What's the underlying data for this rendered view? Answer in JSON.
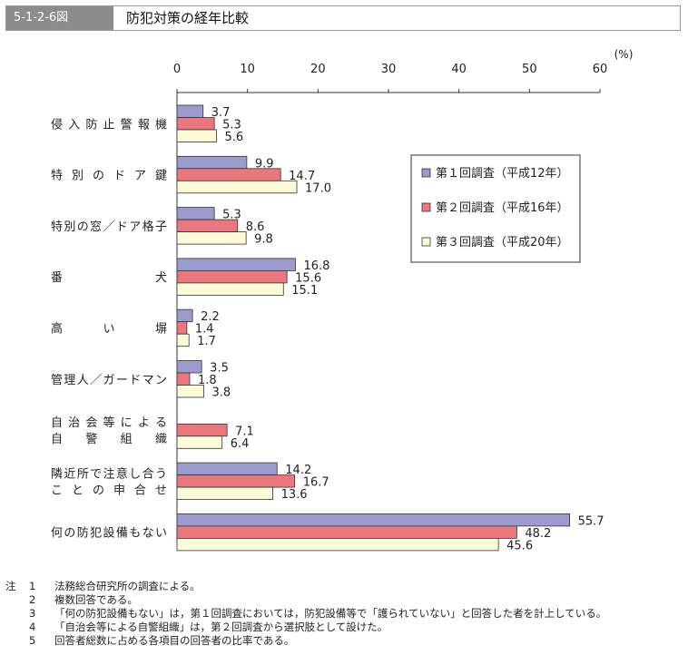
{
  "header": {
    "figure_number": "5-1-2-6図",
    "title": "防犯対策の経年比較"
  },
  "chart_data": {
    "type": "bar",
    "orientation": "horizontal",
    "title": "防犯対策の経年比較",
    "unit_label": "(%)",
    "xlim": [
      0,
      60
    ],
    "ticks": [
      "0",
      "10",
      "20",
      "30",
      "40",
      "50",
      "60"
    ],
    "categories": [
      [
        "侵入防止警報機"
      ],
      [
        "特別のドア鍵"
      ],
      [
        "特別の窓／ドア格子"
      ],
      [
        "番犬"
      ],
      [
        "高い塀"
      ],
      [
        "管理人／ガードマン"
      ],
      [
        "自治会等による",
        "自警組織"
      ],
      [
        "隣近所で注意し合う",
        "ことの申合せ"
      ],
      [
        "何の防犯設備もない"
      ]
    ],
    "category_display": [
      [
        "侵 入 防 止 警 報 機"
      ],
      [
        "特　別　の　ド　ア　鍵"
      ],
      [
        "特別の窓／ドア格子"
      ],
      [
        "番　　　　　　　犬"
      ],
      [
        "高　　　い　　　塀"
      ],
      [
        "管理人／ガードマン"
      ],
      [
        "自 治 会 等 に よ る",
        "自　警　組　織"
      ],
      [
        "隣近所で注意し合う",
        "こ と の 申 合 せ"
      ],
      [
        "何の防犯設備もない"
      ]
    ],
    "series": [
      {
        "name": "第１回調査（平成12年）",
        "color": "#9b9bcc",
        "values": [
          3.7,
          9.9,
          5.3,
          16.8,
          2.2,
          3.5,
          null,
          14.2,
          55.7
        ],
        "labels": [
          "3.7",
          "9.9",
          "5.3",
          "16.8",
          "2.2",
          "3.5",
          "",
          "14.2",
          "55.7"
        ]
      },
      {
        "name": "第２回調査（平成16年）",
        "color": "#e8787e",
        "values": [
          5.3,
          14.7,
          8.6,
          15.6,
          1.4,
          1.8,
          7.1,
          16.7,
          48.2
        ],
        "labels": [
          "5.3",
          "14.7",
          "8.6",
          "15.6",
          "1.4",
          "1.8",
          "7.1",
          "16.7",
          "48.2"
        ]
      },
      {
        "name": "第３回調査（平成20年）",
        "color": "#fbfbd8",
        "values": [
          5.6,
          17.0,
          9.8,
          15.1,
          1.7,
          3.8,
          6.4,
          13.6,
          45.6
        ],
        "labels": [
          "5.6",
          "17.0",
          "9.8",
          "15.1",
          "1.7",
          "3.8",
          "6.4",
          "13.6",
          "45.6"
        ]
      }
    ],
    "legend_position": "upper-right, inside plot"
  },
  "notes": [
    {
      "prefix": "注",
      "num": "1",
      "text": "法務総合研究所の調査による。"
    },
    {
      "prefix": "",
      "num": "2",
      "text": "複数回答である。"
    },
    {
      "prefix": "",
      "num": "3",
      "text": "「何の防犯設備もない」は，第１回調査においては，防犯設備等で「護られていない」と回答した者を計上している。"
    },
    {
      "prefix": "",
      "num": "4",
      "text": "「自治会等による自警組織」は，第２回調査から選択肢として設けた。"
    },
    {
      "prefix": "",
      "num": "5",
      "text": "回答者総数に占める各項目の回答者の比率である。"
    }
  ]
}
